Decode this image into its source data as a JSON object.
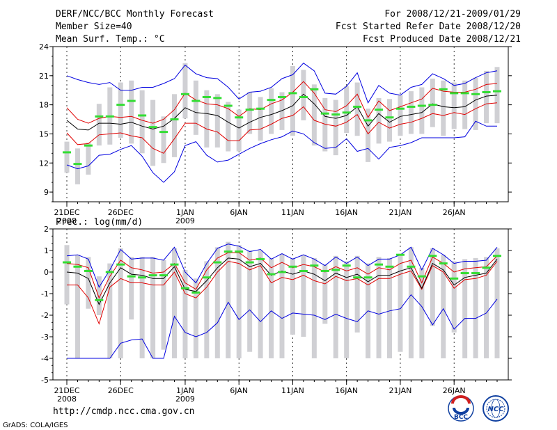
{
  "header": {
    "title": "DERF/NCC/BCC Monthly Forecast",
    "member": "Member Size=40",
    "var1": "Mean Surf. Temp.: °C",
    "period": "For 2008/12/21-2009/01/29",
    "started": "Fcst Started Refer Date 2008/12/20",
    "produced": "Fcst Produced Date 2008/12/21"
  },
  "footer": {
    "url": "http://cmdp.ncc.cma.gov.cn",
    "grads": "GrADS: COLA/IGES",
    "logo_bcc": "BCC",
    "logo_ncc": "NCC"
  },
  "colors": {
    "max": "#0000e0",
    "p75": "#e00000",
    "median": "#000000",
    "p25": "#e00000",
    "min": "#0000e0",
    "ens_mean": "#33dd33",
    "box": "#d0d0d4"
  },
  "chart_data": [
    {
      "type": "line",
      "title": "Mean Surf. Temp.: °C",
      "x_labels": [
        {
          "i": 0,
          "label": "21DEC",
          "sub": "2008"
        },
        {
          "i": 5,
          "label": "26DEC"
        },
        {
          "i": 11,
          "label": "1JAN",
          "sub": "2009"
        },
        {
          "i": 16,
          "label": "6JAN"
        },
        {
          "i": 21,
          "label": "11JAN"
        },
        {
          "i": 26,
          "label": "16JAN"
        },
        {
          "i": 31,
          "label": "21JAN"
        },
        {
          "i": 36,
          "label": "26JAN"
        }
      ],
      "ylim": [
        8,
        24
      ],
      "yticks": [
        9,
        12,
        15,
        18,
        21,
        24
      ],
      "max": [
        21.0,
        20.6,
        20.3,
        20.1,
        20.3,
        19.5,
        19.5,
        19.8,
        19.8,
        20.2,
        20.7,
        22.1,
        21.2,
        20.8,
        20.7,
        19.8,
        18.6,
        19.3,
        19.4,
        19.8,
        20.7,
        21.1,
        22.3,
        21.5,
        19.2,
        19.1,
        19.9,
        21.3,
        18.2,
        20.0,
        19.2,
        19.0,
        19.8,
        20.1,
        21.2,
        20.7,
        20.0,
        20.2,
        20.8,
        21.3,
        21.5
      ],
      "p75": [
        17.7,
        16.5,
        16.1,
        16.6,
        16.8,
        16.7,
        16.8,
        16.4,
        16.1,
        16.5,
        17.5,
        19.2,
        18.5,
        18.1,
        18.0,
        17.6,
        16.8,
        17.6,
        17.5,
        18.1,
        18.5,
        19.3,
        20.4,
        19.2,
        17.5,
        17.3,
        17.9,
        19.1,
        16.7,
        18.4,
        17.4,
        17.8,
        18.2,
        18.6,
        19.7,
        19.4,
        19.3,
        19.3,
        19.6,
        20.1,
        20.2
      ],
      "median": [
        16.4,
        15.5,
        15.4,
        16.1,
        16.1,
        16.0,
        16.2,
        15.8,
        15.5,
        15.8,
        16.6,
        17.7,
        17.2,
        17.1,
        16.9,
        16.2,
        15.6,
        16.2,
        16.7,
        17.0,
        17.4,
        17.9,
        19.1,
        18.1,
        16.8,
        16.6,
        16.9,
        17.8,
        15.8,
        17.1,
        16.2,
        16.8,
        17.0,
        17.2,
        18.1,
        17.8,
        17.7,
        17.8,
        18.5,
        18.9,
        19.0
      ],
      "p25": [
        15.1,
        13.9,
        14.0,
        14.9,
        15.0,
        15.1,
        14.8,
        14.6,
        13.5,
        13.0,
        14.5,
        16.1,
        16.1,
        15.5,
        15.2,
        14.3,
        14.3,
        15.4,
        15.5,
        16.0,
        16.6,
        16.9,
        17.8,
        16.4,
        16.0,
        15.8,
        16.2,
        17.0,
        15.0,
        16.2,
        15.6,
        16.0,
        16.2,
        16.6,
        17.1,
        16.9,
        17.2,
        17.0,
        17.6,
        18.1,
        18.2
      ],
      "min": [
        11.8,
        11.4,
        11.7,
        12.8,
        12.9,
        13.4,
        13.8,
        12.7,
        11.0,
        10.0,
        11.1,
        13.8,
        14.2,
        12.8,
        12.1,
        12.3,
        12.9,
        13.5,
        14.0,
        14.4,
        14.7,
        15.3,
        15.0,
        14.1,
        13.5,
        13.6,
        14.5,
        13.2,
        13.5,
        12.4,
        13.6,
        13.8,
        14.1,
        14.6,
        14.6,
        14.6,
        14.6,
        14.7,
        16.3,
        15.8,
        15.8
      ],
      "ens_mean": [
        13.1,
        11.9,
        13.8,
        16.8,
        16.8,
        18.0,
        18.4,
        16.9,
        15.7,
        15.2,
        16.5,
        19.1,
        18.4,
        18.8,
        18.7,
        17.9,
        16.7,
        17.5,
        17.6,
        18.5,
        18.8,
        19.2,
        18.8,
        19.6,
        17.1,
        17.0,
        17.2,
        17.8,
        16.4,
        17.5,
        16.7,
        17.6,
        17.8,
        17.9,
        18.0,
        19.6,
        19.2,
        19.2,
        19.1,
        19.3,
        19.4
      ],
      "box_low": [
        11.0,
        9.8,
        10.8,
        13.8,
        13.9,
        14.6,
        14.0,
        13.0,
        11.7,
        12.0,
        12.6,
        16.6,
        14.9,
        13.6,
        13.6,
        13.2,
        13.2,
        15.0,
        14.3,
        15.0,
        15.4,
        14.8,
        16.4,
        13.8,
        13.2,
        12.8,
        15.1,
        14.8,
        12.1,
        14.0,
        14.2,
        14.8,
        15.0,
        15.0,
        15.7,
        14.8,
        15.5,
        15.5,
        15.4,
        16.1,
        16.1
      ],
      "box_high": [
        14.2,
        13.5,
        14.1,
        18.1,
        19.8,
        20.3,
        20.5,
        19.5,
        18.5,
        16.8,
        19.1,
        22.3,
        20.5,
        19.5,
        19.1,
        18.3,
        17.5,
        19.3,
        18.8,
        19.7,
        19.3,
        22.0,
        21.6,
        20.1,
        18.7,
        18.5,
        19.9,
        20.3,
        17.6,
        18.7,
        18.6,
        19.0,
        19.4,
        19.8,
        20.7,
        20.5,
        20.3,
        20.5,
        20.8,
        21.5,
        21.9
      ]
    },
    {
      "type": "line",
      "title": "Prec.: log(mm/d)",
      "x_labels": [
        {
          "i": 0,
          "label": "21DEC",
          "sub": "2008"
        },
        {
          "i": 5,
          "label": "26DEC"
        },
        {
          "i": 11,
          "label": "1JAN",
          "sub": "2009"
        },
        {
          "i": 16,
          "label": "6JAN"
        },
        {
          "i": 21,
          "label": "11JAN"
        },
        {
          "i": 26,
          "label": "16JAN"
        },
        {
          "i": 31,
          "label": "21JAN"
        },
        {
          "i": 36,
          "label": "26JAN"
        }
      ],
      "ylim": [
        -5,
        2
      ],
      "yticks": [
        -5,
        -4,
        -3,
        -2,
        -1,
        0,
        1,
        2
      ],
      "max": [
        0.75,
        0.8,
        0.6,
        -0.7,
        0.1,
        1.05,
        0.6,
        0.65,
        0.65,
        0.55,
        1.15,
        0.0,
        -0.5,
        0.4,
        1.1,
        1.3,
        1.2,
        0.95,
        1.05,
        0.6,
        0.85,
        0.6,
        0.8,
        0.6,
        0.3,
        0.7,
        0.4,
        0.7,
        0.3,
        0.6,
        0.6,
        0.8,
        1.15,
        0.1,
        1.1,
        0.8,
        0.4,
        0.5,
        0.5,
        0.55,
        1.15
      ],
      "p75": [
        0.4,
        0.35,
        0.2,
        -1.2,
        -0.2,
        0.55,
        0.2,
        0.1,
        -0.05,
        0.0,
        0.4,
        -0.5,
        -0.8,
        0.1,
        0.65,
        0.9,
        0.9,
        0.55,
        0.65,
        0.2,
        0.45,
        0.2,
        0.35,
        0.25,
        0.0,
        0.25,
        0.05,
        0.2,
        -0.1,
        0.2,
        0.1,
        0.4,
        0.55,
        -0.5,
        0.7,
        0.4,
        0.0,
        0.15,
        0.2,
        0.25,
        0.75
      ],
      "median": [
        0.0,
        -0.05,
        -0.3,
        -1.5,
        -0.5,
        0.2,
        -0.1,
        -0.15,
        -0.3,
        -0.3,
        0.25,
        -0.8,
        -0.9,
        -0.4,
        0.2,
        0.65,
        0.6,
        0.25,
        0.4,
        -0.15,
        0.05,
        -0.1,
        0.05,
        -0.1,
        -0.4,
        -0.05,
        -0.25,
        -0.1,
        -0.45,
        -0.15,
        -0.15,
        0.05,
        0.2,
        -0.75,
        0.4,
        0.1,
        -0.6,
        -0.25,
        -0.15,
        -0.05,
        0.6
      ],
      "p25": [
        -0.6,
        -0.6,
        -1.2,
        -2.4,
        -0.7,
        -0.3,
        -0.5,
        -0.5,
        -0.6,
        -0.6,
        0.0,
        -1.0,
        -1.2,
        -0.7,
        0.0,
        0.5,
        0.4,
        0.1,
        0.3,
        -0.5,
        -0.25,
        -0.35,
        -0.15,
        -0.4,
        -0.55,
        -0.2,
        -0.4,
        -0.3,
        -0.6,
        -0.3,
        -0.3,
        -0.1,
        0.05,
        -0.8,
        0.3,
        0.0,
        -0.75,
        -0.35,
        -0.3,
        -0.15,
        0.5
      ],
      "min": [
        -4.0,
        -4.0,
        -4.0,
        -4.0,
        -4.0,
        -3.3,
        -3.15,
        -3.1,
        -4.0,
        -4.0,
        -2.05,
        -2.8,
        -3.0,
        -2.8,
        -2.35,
        -1.4,
        -2.2,
        -1.75,
        -2.3,
        -1.8,
        -2.15,
        -1.9,
        -1.95,
        -2.0,
        -2.2,
        -1.95,
        -2.15,
        -2.3,
        -1.8,
        -1.95,
        -1.8,
        -1.7,
        -1.05,
        -1.6,
        -2.45,
        -1.7,
        -2.65,
        -2.15,
        -2.15,
        -1.9,
        -1.25
      ],
      "ens_mean": [
        0.45,
        0.25,
        0.05,
        -1.3,
        0.0,
        0.35,
        -0.2,
        -0.25,
        -0.15,
        -0.15,
        0.35,
        -0.75,
        -0.95,
        -0.25,
        0.45,
        0.95,
        0.95,
        0.45,
        0.6,
        -0.1,
        0.0,
        0.25,
        0.05,
        0.3,
        0.05,
        0.1,
        0.3,
        -0.25,
        -0.25,
        0.35,
        0.25,
        0.8,
        0.25,
        -0.2,
        0.75,
        0.4,
        -0.3,
        -0.05,
        -0.05,
        0.2,
        0.75
      ],
      "box_low": [
        -1.5,
        -4.0,
        -1.7,
        -2.0,
        -4.0,
        -4.0,
        -2.2,
        -4.0,
        -4.0,
        -3.6,
        -4.0,
        -4.0,
        -4.0,
        -4.0,
        -4.0,
        -4.0,
        -4.0,
        -3.7,
        -4.0,
        -4.0,
        -4.0,
        -2.9,
        -3.0,
        -4.0,
        -2.4,
        -4.0,
        -4.0,
        -2.8,
        -4.0,
        -4.0,
        -4.0,
        -3.7,
        -4.0,
        -4.0,
        -2.5,
        -4.0,
        -2.8,
        -4.0,
        -4.0,
        -4.0,
        -4.0
      ],
      "box_high": [
        1.25,
        0.8,
        0.7,
        -0.2,
        0.4,
        1.1,
        0.7,
        0.7,
        0.7,
        0.55,
        1.1,
        0.1,
        -0.3,
        0.5,
        1.15,
        1.4,
        1.25,
        1.0,
        1.0,
        0.65,
        0.85,
        0.65,
        0.8,
        0.65,
        0.35,
        0.75,
        0.5,
        0.75,
        0.4,
        0.7,
        0.65,
        0.85,
        1.15,
        0.2,
        1.1,
        0.8,
        0.5,
        0.6,
        0.65,
        0.7,
        1.1
      ]
    }
  ]
}
